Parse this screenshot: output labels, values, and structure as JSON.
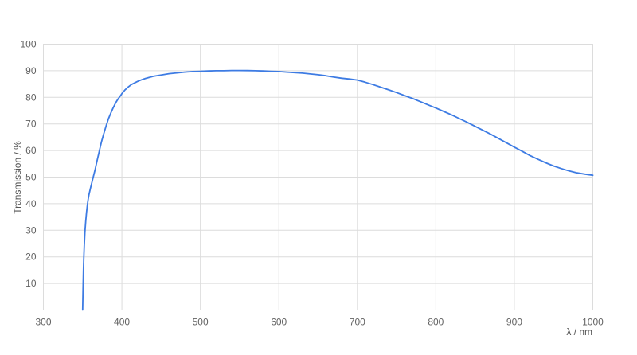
{
  "chart_data": {
    "type": "line",
    "title": "",
    "xlabel": "λ / nm",
    "ylabel": "Transmission / %",
    "xlim": [
      300,
      1000
    ],
    "ylim": [
      0,
      100
    ],
    "x_ticks": [
      300,
      400,
      500,
      600,
      700,
      800,
      900,
      1000
    ],
    "y_ticks": [
      10,
      20,
      30,
      40,
      50,
      60,
      70,
      80,
      90,
      100
    ],
    "grid": true,
    "legend": "none",
    "colors": {
      "line": "#3d7be3",
      "grid": "#dcdcdc",
      "tick_text": "#636363",
      "axis_title_text": "#555555",
      "background": "#ffffff"
    },
    "series": [
      {
        "name": "Transmission",
        "points": [
          [
            350,
            0
          ],
          [
            350.5,
            8
          ],
          [
            351,
            15
          ],
          [
            351.5,
            20
          ],
          [
            352,
            24
          ],
          [
            353,
            29.5
          ],
          [
            354,
            33.5
          ],
          [
            355,
            36.8
          ],
          [
            356,
            39.4
          ],
          [
            357,
            41.6
          ],
          [
            358,
            43.3
          ],
          [
            360,
            45.8
          ],
          [
            362,
            48.2
          ],
          [
            364,
            50.6
          ],
          [
            366,
            53
          ],
          [
            368,
            55.6
          ],
          [
            370,
            58.2
          ],
          [
            372,
            60.8
          ],
          [
            374,
            63.2
          ],
          [
            376,
            65.4
          ],
          [
            378,
            67.4
          ],
          [
            380,
            69.4
          ],
          [
            383,
            72
          ],
          [
            386,
            74.2
          ],
          [
            389,
            76.1
          ],
          [
            392,
            77.9
          ],
          [
            395,
            79.3
          ],
          [
            398,
            80.5
          ],
          [
            400,
            81.4
          ],
          [
            404,
            82.8
          ],
          [
            408,
            83.9
          ],
          [
            412,
            84.8
          ],
          [
            416,
            85.4
          ],
          [
            420,
            86
          ],
          [
            425,
            86.6
          ],
          [
            430,
            87.1
          ],
          [
            435,
            87.5
          ],
          [
            440,
            87.9
          ],
          [
            450,
            88.4
          ],
          [
            460,
            88.9
          ],
          [
            470,
            89.2
          ],
          [
            480,
            89.5
          ],
          [
            490,
            89.7
          ],
          [
            500,
            89.8
          ],
          [
            510,
            89.9
          ],
          [
            520,
            90
          ],
          [
            530,
            90
          ],
          [
            540,
            90.1
          ],
          [
            550,
            90.1
          ],
          [
            560,
            90.05
          ],
          [
            570,
            90
          ],
          [
            580,
            89.9
          ],
          [
            590,
            89.8
          ],
          [
            600,
            89.7
          ],
          [
            610,
            89.5
          ],
          [
            620,
            89.3
          ],
          [
            630,
            89.1
          ],
          [
            640,
            88.8
          ],
          [
            650,
            88.5
          ],
          [
            660,
            88.1
          ],
          [
            670,
            87.6
          ],
          [
            680,
            87.2
          ],
          [
            690,
            86.9
          ],
          [
            700,
            86.5
          ],
          [
            710,
            85.7
          ],
          [
            720,
            84.8
          ],
          [
            730,
            83.8
          ],
          [
            740,
            82.8
          ],
          [
            750,
            81.8
          ],
          [
            760,
            80.7
          ],
          [
            770,
            79.6
          ],
          [
            780,
            78.4
          ],
          [
            790,
            77.2
          ],
          [
            800,
            76
          ],
          [
            810,
            74.7
          ],
          [
            820,
            73.4
          ],
          [
            830,
            72
          ],
          [
            840,
            70.6
          ],
          [
            850,
            69.1
          ],
          [
            860,
            67.6
          ],
          [
            870,
            66.1
          ],
          [
            880,
            64.5
          ],
          [
            890,
            62.9
          ],
          [
            900,
            61.3
          ],
          [
            910,
            59.7
          ],
          [
            920,
            58.1
          ],
          [
            930,
            56.7
          ],
          [
            940,
            55.4
          ],
          [
            950,
            54.2
          ],
          [
            960,
            53.2
          ],
          [
            970,
            52.3
          ],
          [
            980,
            51.6
          ],
          [
            990,
            51.1
          ],
          [
            1000,
            50.7
          ]
        ]
      }
    ]
  }
}
